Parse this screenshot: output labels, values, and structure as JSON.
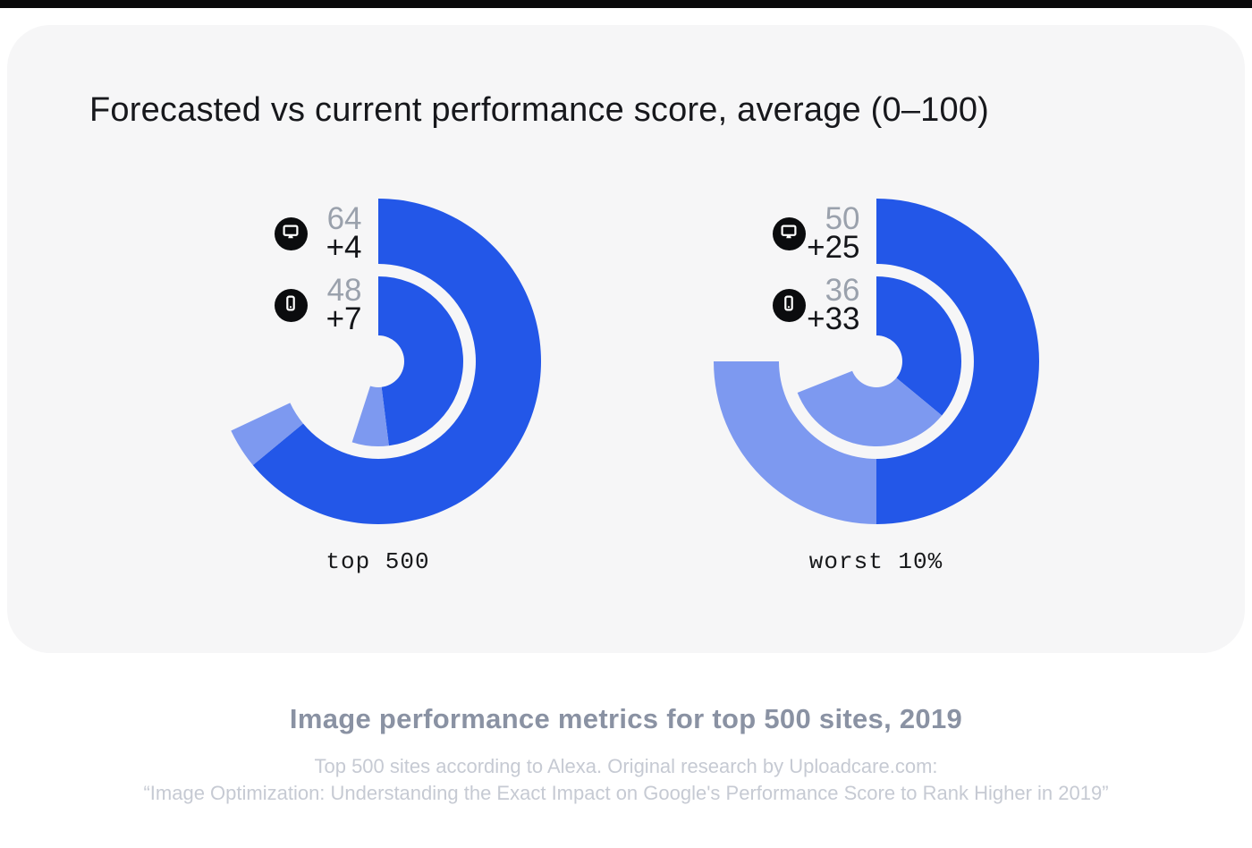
{
  "title": "Forecasted vs current performance score, average (0–100)",
  "footer": {
    "heading": "Image performance metrics for top 500 sites, 2019",
    "note_line1": "Top 500 sites according to Alexa. Original research by Uploadcare.com:",
    "note_line2": "“Image Optimization: Understanding the Exact Impact on Google's Performance Score to Rank Higher in 2019”"
  },
  "colors": {
    "current_blue": "#2357e8",
    "forecast_light_blue": "#7d99f0",
    "badge_black": "#0b0c0e",
    "current_value_gray": "#9aa1ac",
    "gain_value_black": "#141519",
    "card_bg": "#f6f6f7"
  },
  "chart_data": [
    {
      "type": "donut",
      "caption": "top 500",
      "scale_min": 0,
      "scale_max": 100,
      "start_angle_deg": 0,
      "direction": "clockwise",
      "rings": [
        {
          "ring": "outer",
          "device": "desktop",
          "icon": "desktop-icon",
          "current": 64,
          "forecast_gain": 4,
          "current_label": "64",
          "gain_label": "+4"
        },
        {
          "ring": "inner",
          "device": "mobile",
          "icon": "mobile-icon",
          "current": 48,
          "forecast_gain": 7,
          "current_label": "48",
          "gain_label": "+7"
        }
      ]
    },
    {
      "type": "donut",
      "caption": "worst 10%",
      "scale_min": 0,
      "scale_max": 100,
      "start_angle_deg": 0,
      "direction": "clockwise",
      "rings": [
        {
          "ring": "outer",
          "device": "desktop",
          "icon": "desktop-icon",
          "current": 50,
          "forecast_gain": 25,
          "current_label": "50",
          "gain_label": "+25"
        },
        {
          "ring": "inner",
          "device": "mobile",
          "icon": "mobile-icon",
          "current": 36,
          "forecast_gain": 33,
          "current_label": "36",
          "gain_label": "+33"
        }
      ]
    }
  ]
}
